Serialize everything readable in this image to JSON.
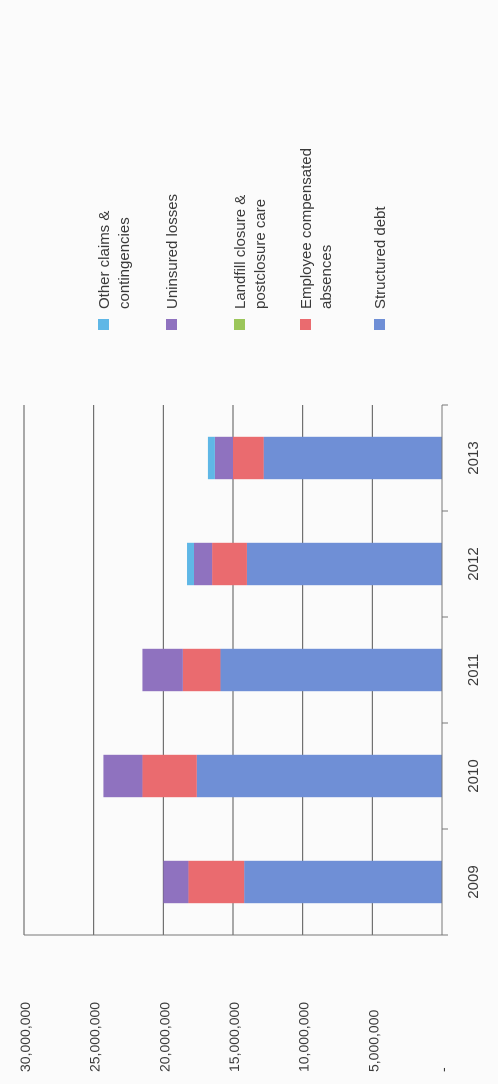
{
  "chart_data": {
    "type": "bar",
    "orientation": "stacked-column-rotated",
    "categories": [
      "2009",
      "2010",
      "2011",
      "2012",
      "2013"
    ],
    "series": [
      {
        "name": "Structured debt",
        "color": "#6f8fd6",
        "values": [
          14200000,
          17600000,
          15900000,
          14000000,
          12800000
        ]
      },
      {
        "name": "Employee compensated absences",
        "color": "#ea6b6f",
        "values": [
          4000000,
          3900000,
          2700000,
          2500000,
          2200000
        ]
      },
      {
        "name": "Landfill closure & postclosure care",
        "color": "#9bc65a",
        "values": [
          0,
          0,
          0,
          0,
          0
        ]
      },
      {
        "name": "Uninsured losses",
        "color": "#8f72bf",
        "values": [
          1800000,
          2800000,
          2900000,
          1300000,
          1300000
        ]
      },
      {
        "name": "Other claims & contingencies",
        "color": "#5fb7e6",
        "values": [
          0,
          0,
          0,
          500000,
          500000
        ]
      }
    ],
    "y_ticks": [
      {
        "value": 0,
        "label": "-"
      },
      {
        "value": 5000000,
        "label": "5,000,000"
      },
      {
        "value": 10000000,
        "label": "10,000,000"
      },
      {
        "value": 15000000,
        "label": "15,000,000"
      },
      {
        "value": 20000000,
        "label": "20,000,000"
      },
      {
        "value": 25000000,
        "label": "25,000,000"
      },
      {
        "value": 30000000,
        "label": "30,000,000"
      }
    ],
    "ylim": [
      0,
      30000000
    ],
    "grid": true,
    "legend_position": "top"
  }
}
